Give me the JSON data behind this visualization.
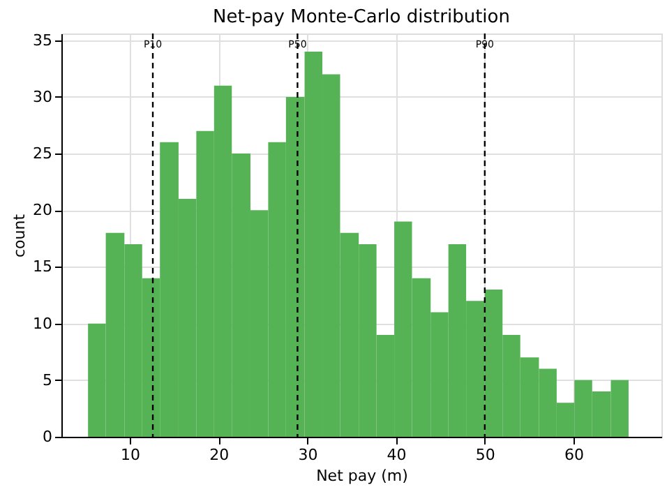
{
  "chart_data": {
    "type": "histogram",
    "title": "Net-pay Monte-Carlo distribution",
    "xlabel": "Net pay (m)",
    "ylabel": "count",
    "bins": [
      5.3,
      7.3,
      9.4,
      11.4,
      13.4,
      15.5,
      17.5,
      19.5,
      21.5,
      23.6,
      25.6,
      27.6,
      29.7,
      31.7,
      33.7,
      35.8,
      37.8,
      39.8,
      41.8,
      43.9,
      45.9,
      47.9,
      50.0,
      52.0,
      54.0,
      56.1,
      58.1,
      60.1,
      62.1,
      64.2,
      66.2
    ],
    "values": [
      10,
      18,
      17,
      14,
      26,
      21,
      27,
      31,
      25,
      20,
      26,
      30,
      34,
      32,
      18,
      17,
      9,
      19,
      14,
      11,
      17,
      12,
      13,
      9,
      7,
      6,
      3,
      5,
      4,
      5
    ],
    "color": "#55b255",
    "xlim": [
      2.3,
      69.9
    ],
    "xticks": [
      10,
      20,
      30,
      40,
      50,
      60
    ],
    "ylim": [
      0,
      35.6
    ],
    "yticks": [
      0,
      5,
      10,
      15,
      20,
      25,
      30,
      35
    ],
    "grid": true,
    "ref_lines": [
      {
        "axis": "x",
        "value": 12.6,
        "label": "P10",
        "color": "#000000",
        "line_style": "dashed"
      },
      {
        "axis": "x",
        "value": 28.9,
        "label": "P50",
        "color": "#000000",
        "line_style": "dashed"
      },
      {
        "axis": "x",
        "value": 50.0,
        "label": "P90",
        "color": "#000000",
        "line_style": "dashed"
      }
    ]
  }
}
